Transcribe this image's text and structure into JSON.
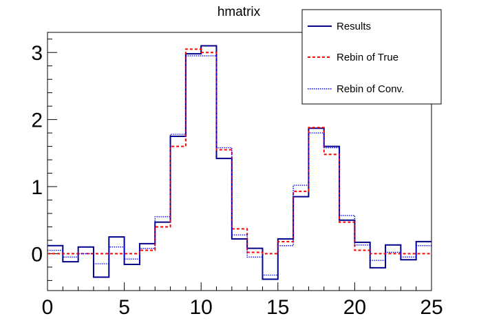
{
  "chart_data": {
    "type": "line",
    "title": "hmatrix",
    "xlabel": "",
    "ylabel": "",
    "xlim": [
      0,
      25
    ],
    "ylim": [
      -0.55,
      3.3
    ],
    "x_ticks": [
      0,
      5,
      10,
      15,
      20,
      25
    ],
    "y_ticks": [
      0,
      1,
      2,
      3
    ],
    "grid": false,
    "legend_position": "top-right",
    "bin_edges": [
      0,
      1,
      2,
      3,
      4,
      5,
      6,
      7,
      8,
      9,
      10,
      11,
      12,
      13,
      14,
      15,
      16,
      17,
      18,
      19,
      20,
      21,
      22,
      23,
      24,
      25
    ],
    "series": [
      {
        "name": "Results",
        "style": "solid",
        "color": "#00008b",
        "values": [
          0.12,
          -0.12,
          0.1,
          -0.35,
          0.25,
          -0.16,
          0.15,
          0.47,
          1.75,
          2.98,
          3.1,
          1.42,
          0.22,
          0.08,
          -0.38,
          0.22,
          0.85,
          1.87,
          1.6,
          0.5,
          0.17,
          -0.21,
          0.13,
          -0.09,
          0.18
        ]
      },
      {
        "name": "Rebin of True",
        "style": "dashed",
        "color": "#ff0000",
        "values": [
          0.0,
          0.0,
          0.0,
          0.0,
          0.0,
          0.0,
          0.05,
          0.4,
          1.6,
          3.05,
          3.0,
          1.55,
          0.37,
          0.02,
          0.0,
          0.18,
          0.93,
          1.88,
          1.48,
          0.47,
          0.05,
          0.0,
          0.0,
          0.0,
          0.0
        ]
      },
      {
        "name": "Rebin of Conv.",
        "style": "dotted",
        "color": "#0000ff",
        "values": [
          0.05,
          -0.05,
          0.0,
          -0.15,
          0.1,
          -0.08,
          0.08,
          0.55,
          1.78,
          2.95,
          2.95,
          1.58,
          0.28,
          -0.05,
          -0.32,
          0.12,
          1.02,
          1.8,
          1.58,
          0.57,
          0.13,
          -0.1,
          0.02,
          -0.05,
          0.12
        ]
      }
    ]
  }
}
